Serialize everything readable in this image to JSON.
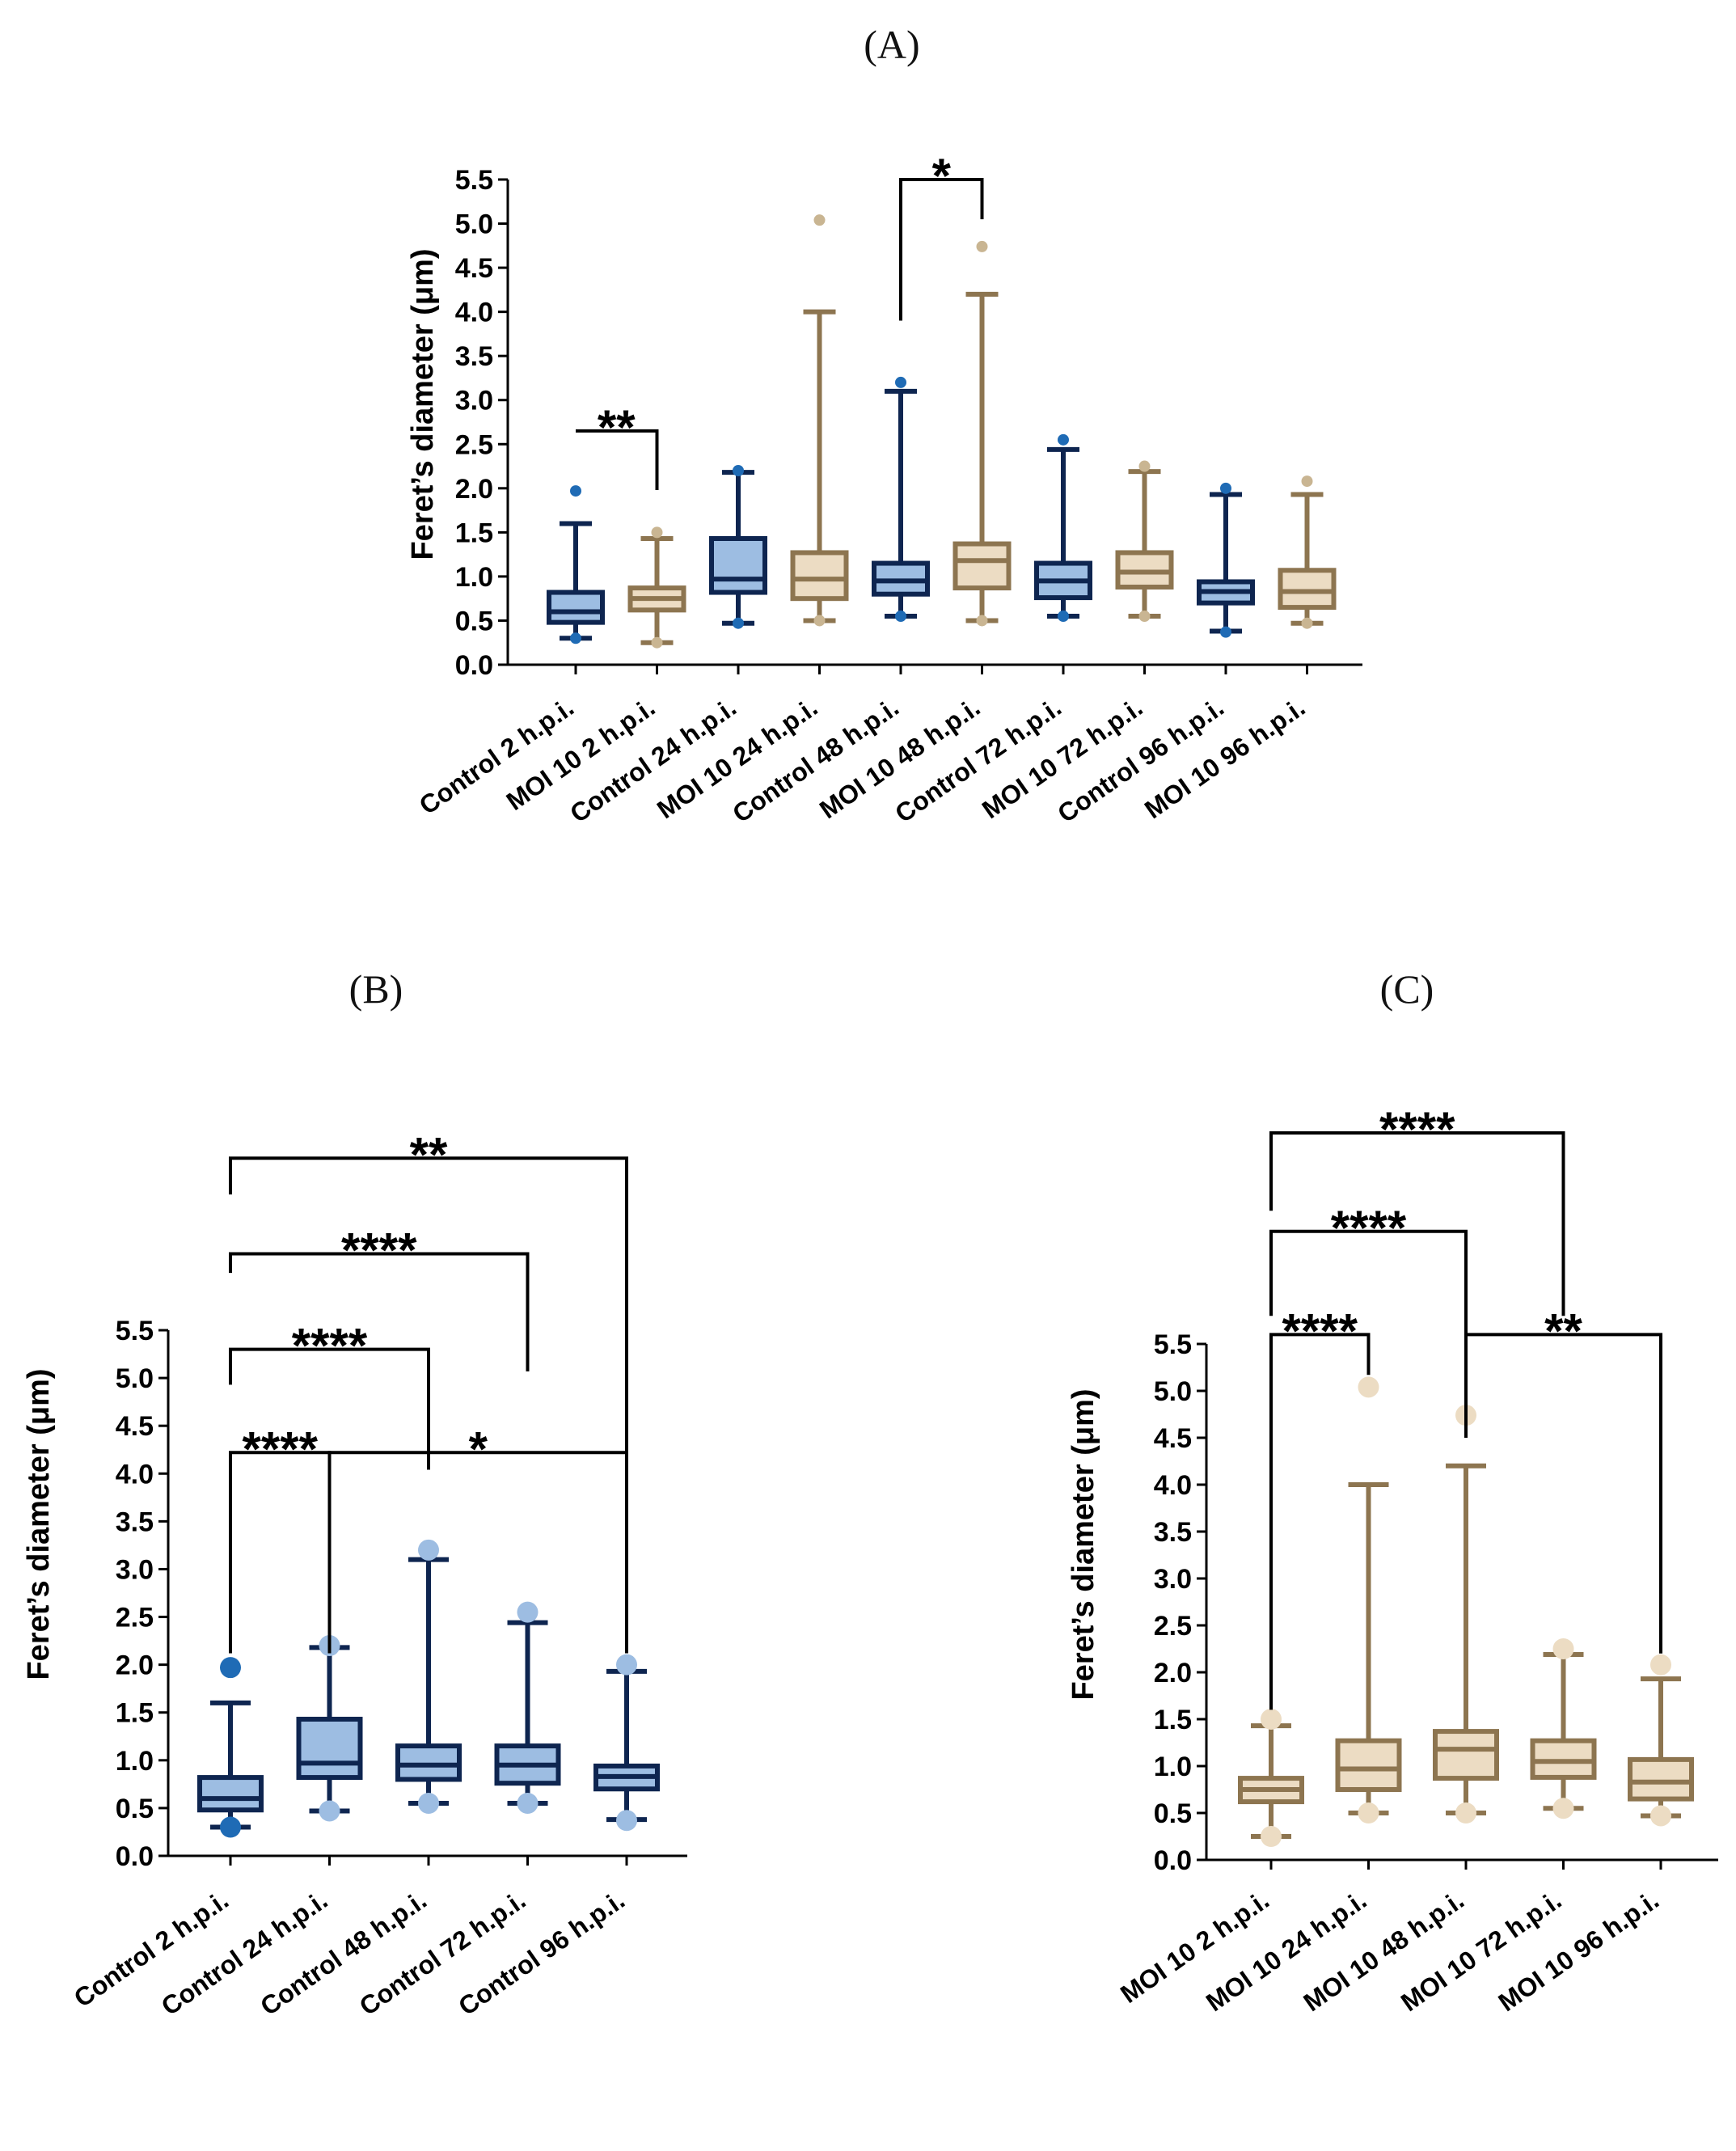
{
  "colors": {
    "control_dark": "#0e2550",
    "control_fill": "#9dbde2",
    "control_outlier_a": "#1f6bb5",
    "control_outlier_b": "#9dbde2",
    "moi_dark": "#8d7550",
    "moi_fill": "#ecdcc3",
    "moi_outlier_a": "#c9b592",
    "moi_outlier_b": "#ecdcc3",
    "axis": "#000000"
  },
  "chart_data": [
    {
      "id": "A",
      "title": "(A)",
      "type": "boxplot",
      "ylabel": "Feret’s diameter (μm)",
      "ylim": [
        0,
        5.5
      ],
      "yticks": [
        "0.0",
        "0.5",
        "1.0",
        "1.5",
        "2.0",
        "2.5",
        "3.0",
        "3.5",
        "4.0",
        "4.5",
        "5.0",
        "5.5"
      ],
      "categories": [
        "Control 2 h.p.i.",
        "MOI 10 2 h.p.i.",
        "Control 24 h.p.i.",
        "MOI 10 24 h.p.i.",
        "Control 48 h.p.i.",
        "MOI 10 48 h.p.i.",
        "Control 72 h.p.i.",
        "MOI 10 72 h.p.i.",
        "Control 96 h.p.i.",
        "MOI 10 96 h.p.i."
      ],
      "boxes": [
        {
          "group": "control",
          "min": 0.3,
          "q1": 0.48,
          "median": 0.6,
          "q3": 0.82,
          "max": 1.6,
          "outliers": [
            0.3,
            1.97
          ]
        },
        {
          "group": "moi",
          "min": 0.25,
          "q1": 0.62,
          "median": 0.75,
          "q3": 0.87,
          "max": 1.43,
          "outliers": [
            0.25,
            1.5
          ]
        },
        {
          "group": "control",
          "min": 0.47,
          "q1": 0.82,
          "median": 0.97,
          "q3": 1.43,
          "max": 2.18,
          "outliers": [
            0.47,
            2.2
          ]
        },
        {
          "group": "moi",
          "min": 0.5,
          "q1": 0.75,
          "median": 0.97,
          "q3": 1.27,
          "max": 4.0,
          "outliers": [
            0.5,
            5.04
          ]
        },
        {
          "group": "control",
          "min": 0.55,
          "q1": 0.8,
          "median": 0.95,
          "q3": 1.15,
          "max": 3.1,
          "outliers": [
            0.55,
            3.2
          ]
        },
        {
          "group": "moi",
          "min": 0.5,
          "q1": 0.87,
          "median": 1.18,
          "q3": 1.37,
          "max": 4.2,
          "outliers": [
            0.5,
            4.74
          ]
        },
        {
          "group": "control",
          "min": 0.55,
          "q1": 0.76,
          "median": 0.95,
          "q3": 1.15,
          "max": 2.44,
          "outliers": [
            0.55,
            2.55
          ]
        },
        {
          "group": "moi",
          "min": 0.55,
          "q1": 0.88,
          "median": 1.05,
          "q3": 1.27,
          "max": 2.19,
          "outliers": [
            0.55,
            2.25
          ]
        },
        {
          "group": "control",
          "min": 0.38,
          "q1": 0.7,
          "median": 0.83,
          "q3": 0.94,
          "max": 1.93,
          "outliers": [
            0.37,
            2.0
          ]
        },
        {
          "group": "moi",
          "min": 0.47,
          "q1": 0.65,
          "median": 0.83,
          "q3": 1.07,
          "max": 1.93,
          "outliers": [
            0.47,
            2.08
          ]
        }
      ],
      "comparisons": [
        {
          "from": 0,
          "to": 1,
          "label": "**",
          "level": 2.65,
          "drop_from": 2.65,
          "drop_to": 1.98
        },
        {
          "from": 4,
          "to": 5,
          "label": "*",
          "level": 5.5,
          "drop_from": 3.9,
          "drop_to": 5.05
        }
      ]
    },
    {
      "id": "B",
      "title": "(B)",
      "type": "boxplot",
      "ylabel": "Feret’s diameter (μm)",
      "ylim": [
        0,
        5.5
      ],
      "yticks": [
        "0.0",
        "0.5",
        "1.0",
        "1.5",
        "2.0",
        "2.5",
        "3.0",
        "3.5",
        "4.0",
        "4.5",
        "5.0",
        "5.5"
      ],
      "categories": [
        "Control 2 h.p.i.",
        "Control 24 h.p.i.",
        "Control 48 h.p.i.",
        "Control 72 h.p.i.",
        "Control 96 h.p.i."
      ],
      "boxes": [
        {
          "group": "control",
          "min": 0.3,
          "q1": 0.48,
          "median": 0.6,
          "q3": 0.82,
          "max": 1.6,
          "outliers": [
            0.3,
            1.97
          ]
        },
        {
          "group": "control",
          "min": 0.47,
          "q1": 0.82,
          "median": 0.97,
          "q3": 1.43,
          "max": 2.18,
          "outliers": [
            0.47,
            2.2
          ]
        },
        {
          "group": "control",
          "min": 0.55,
          "q1": 0.8,
          "median": 0.95,
          "q3": 1.15,
          "max": 3.1,
          "outliers": [
            0.55,
            3.2
          ]
        },
        {
          "group": "control",
          "min": 0.55,
          "q1": 0.76,
          "median": 0.95,
          "q3": 1.15,
          "max": 2.44,
          "outliers": [
            0.55,
            2.55
          ]
        },
        {
          "group": "control",
          "min": 0.38,
          "q1": 0.7,
          "median": 0.83,
          "q3": 0.94,
          "max": 1.93,
          "outliers": [
            0.37,
            2.0
          ]
        }
      ],
      "comparisons": [
        {
          "from": 0,
          "to": 1,
          "label": "****",
          "level": 4.22,
          "drop_from": 2.12,
          "drop_to": 2.12
        },
        {
          "from": 0,
          "to": 2,
          "label": "****",
          "level": 5.3,
          "drop_from": 4.93,
          "drop_to": 4.04
        },
        {
          "from": 0,
          "to": 3,
          "label": "****",
          "level": 6.3,
          "drop_from": 6.1,
          "drop_to": 5.07
        },
        {
          "from": 0,
          "to": 4,
          "label": "**",
          "level": 7.3,
          "drop_from": 6.92,
          "drop_to": 4.04
        },
        {
          "from": 1,
          "to": 4,
          "label": "*",
          "level": 4.22,
          "drop_from": 2.12,
          "drop_to": 2.12
        }
      ]
    },
    {
      "id": "C",
      "title": "(C)",
      "type": "boxplot",
      "ylabel": "Feret’s diameter (μm)",
      "ylim": [
        0,
        5.5
      ],
      "yticks": [
        "0.0",
        "0.5",
        "1.0",
        "1.5",
        "2.0",
        "2.5",
        "3.0",
        "3.5",
        "4.0",
        "4.5",
        "5.0",
        "5.5"
      ],
      "categories": [
        "MOI 10 2 h.p.i.",
        "MOI 10 24 h.p.i.",
        "MOI 10 48 h.p.i.",
        "MOI 10 72 h.p.i.",
        "MOI 10 96 h.p.i."
      ],
      "boxes": [
        {
          "group": "moi",
          "min": 0.25,
          "q1": 0.62,
          "median": 0.75,
          "q3": 0.87,
          "max": 1.43,
          "outliers": [
            0.25,
            1.5
          ]
        },
        {
          "group": "moi",
          "min": 0.5,
          "q1": 0.75,
          "median": 0.97,
          "q3": 1.27,
          "max": 4.0,
          "outliers": [
            0.5,
            5.04
          ]
        },
        {
          "group": "moi",
          "min": 0.5,
          "q1": 0.87,
          "median": 1.18,
          "q3": 1.37,
          "max": 4.2,
          "outliers": [
            0.5,
            4.74
          ]
        },
        {
          "group": "moi",
          "min": 0.55,
          "q1": 0.88,
          "median": 1.05,
          "q3": 1.27,
          "max": 2.19,
          "outliers": [
            0.55,
            2.25
          ]
        },
        {
          "group": "moi",
          "min": 0.47,
          "q1": 0.65,
          "median": 0.83,
          "q3": 1.07,
          "max": 1.93,
          "outliers": [
            0.47,
            2.08
          ]
        }
      ],
      "comparisons": [
        {
          "from": 0,
          "to": 1,
          "label": "****",
          "level": 5.6,
          "drop_from": 1.6,
          "drop_to": 5.17
        },
        {
          "from": 0,
          "to": 2,
          "label": "****",
          "level": 6.7,
          "drop_from": 5.8,
          "drop_to": 4.5
        },
        {
          "from": 0,
          "to": 3,
          "label": "****",
          "level": 7.75,
          "drop_from": 6.92,
          "drop_to": 5.8
        },
        {
          "from": 2,
          "to": 4,
          "label": "**",
          "level": 5.6,
          "drop_from": 4.5,
          "drop_to": 2.2
        }
      ]
    }
  ]
}
